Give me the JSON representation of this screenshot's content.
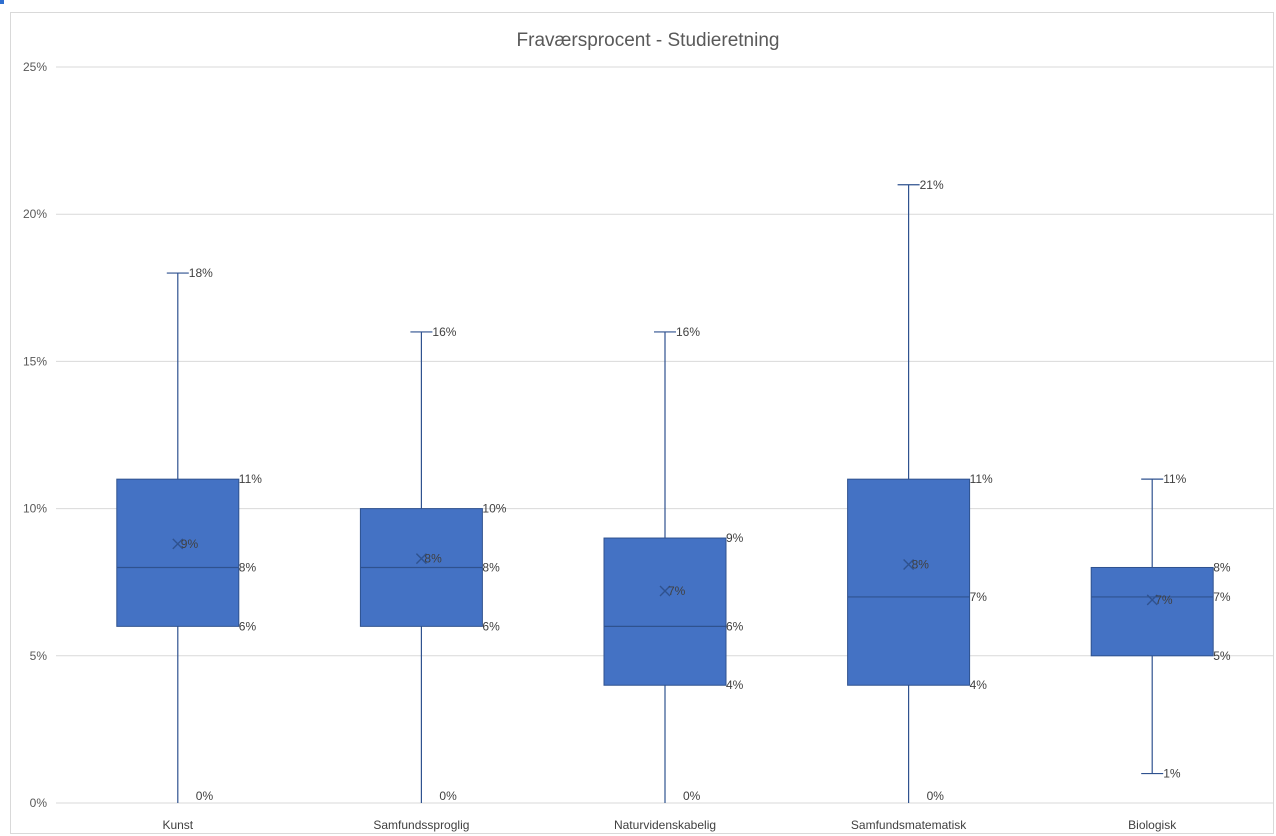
{
  "chart_data": {
    "type": "box",
    "title": "Fraværsprocent - Studieretning",
    "ylim": [
      0,
      25
    ],
    "yticks": [
      0,
      5,
      10,
      15,
      20,
      25
    ],
    "ytick_labels": [
      "0%",
      "5%",
      "10%",
      "15%",
      "20%",
      "25%"
    ],
    "grid": true,
    "categories": [
      "Kunst",
      "Samfundssproglig",
      "Naturvidenskabelig",
      "Samfundsmatematisk",
      "Biologisk"
    ],
    "boxes": [
      {
        "category": "Kunst",
        "min": 0,
        "q1": 6,
        "median": 8,
        "q3": 11,
        "max": 18,
        "mean": 8.8,
        "labels": {
          "min": "0%",
          "q1": "6%",
          "median": "8%",
          "q3": "11%",
          "max": "18%",
          "mean": "9%"
        }
      },
      {
        "category": "Samfundssproglig",
        "min": 0,
        "q1": 6,
        "median": 8,
        "q3": 10,
        "max": 16,
        "mean": 8.3,
        "labels": {
          "min": "0%",
          "q1": "6%",
          "median": "8%",
          "q3": "10%",
          "max": "16%",
          "mean": "8%"
        }
      },
      {
        "category": "Naturvidenskabelig",
        "min": 0,
        "q1": 4,
        "median": 6,
        "q3": 9,
        "max": 16,
        "mean": 7.2,
        "labels": {
          "min": "0%",
          "q1": "4%",
          "median": "6%",
          "q3": "9%",
          "max": "16%",
          "mean": "7%"
        }
      },
      {
        "category": "Samfundsmatematisk",
        "min": 0,
        "q1": 4,
        "median": 7,
        "q3": 11,
        "max": 21,
        "mean": 8.1,
        "labels": {
          "min": "0%",
          "q1": "4%",
          "median": "7%",
          "q3": "11%",
          "max": "21%",
          "mean": "8%"
        }
      },
      {
        "category": "Biologisk",
        "min": 1,
        "q1": 5,
        "median": 7,
        "q3": 8,
        "max": 11,
        "mean": 6.9,
        "labels": {
          "min": "1%",
          "q1": "5%",
          "median": "7%",
          "q3": "8%",
          "max": "11%",
          "mean": "7%"
        }
      }
    ],
    "colors": {
      "box_fill": "#4472c4",
      "box_stroke": "#2f528f",
      "whisker": "#2f528f",
      "grid": "#d9d9d9",
      "text": "#595959"
    }
  }
}
